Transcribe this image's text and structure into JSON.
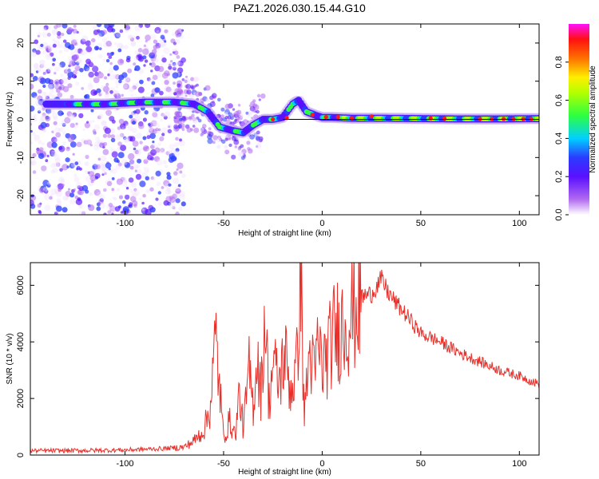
{
  "title": "PAZ1.2026.030.15.44.G10",
  "chart_data": [
    {
      "type": "heatmap",
      "name": "spectrogram",
      "xlabel": "Height of straight line (km)",
      "ylabel": "Frequency (Hz)",
      "xlim": [
        -148,
        110
      ],
      "ylim": [
        -25,
        25
      ],
      "xticks": [
        -100,
        -50,
        0,
        50,
        100
      ],
      "yticks": [
        -20,
        -10,
        0,
        10,
        20
      ],
      "colorbar": {
        "label": "Normalized spectral amplitude",
        "range": [
          0,
          1
        ],
        "ticks": [
          "0.0",
          "0.2",
          "0.4",
          "0.6",
          "0.8"
        ]
      },
      "ridge": {
        "heights_km": [
          -130,
          -110,
          -90,
          -75,
          -65,
          -58,
          -52,
          -45,
          -40,
          -35,
          -30,
          -25,
          -20,
          -15,
          -12,
          -8,
          -3,
          0,
          5,
          15,
          30,
          50,
          70,
          90,
          110
        ],
        "frequency_hz": [
          4,
          4,
          4.5,
          4.5,
          4,
          2,
          -2,
          -3,
          -3.5,
          -1.5,
          0,
          0,
          0.5,
          4,
          5,
          2,
          1,
          0.5,
          0.5,
          0.3,
          0.3,
          0.2,
          0.1,
          0.1,
          0.2
        ]
      }
    },
    {
      "type": "line",
      "name": "snr",
      "xlabel": "Height of straight line (km)",
      "ylabel": "SNR (10 * v/v)",
      "xlim": [
        -148,
        110
      ],
      "ylim": [
        0,
        6800
      ],
      "xticks": [
        -100,
        -50,
        0,
        50,
        100
      ],
      "yticks": [
        0,
        2000,
        4000,
        6000
      ],
      "color": "#e8302a",
      "x": [
        -148,
        -120,
        -100,
        -80,
        -70,
        -65,
        -60,
        -57,
        -54,
        -52,
        -50,
        -47,
        -44,
        -42,
        -40,
        -37,
        -35,
        -33,
        -31,
        -29,
        -27,
        -25,
        -22,
        -19,
        -16,
        -13,
        -11,
        -10,
        -9,
        -8,
        -6,
        -4,
        -2,
        0,
        3,
        6,
        10,
        15,
        20,
        25,
        30,
        33,
        37,
        42,
        50,
        60,
        70,
        80,
        90,
        100,
        110
      ],
      "y": [
        150,
        160,
        180,
        230,
        280,
        500,
        900,
        1600,
        4100,
        2400,
        600,
        1200,
        700,
        2200,
        900,
        3000,
        1700,
        3600,
        2100,
        5200,
        1800,
        3300,
        2500,
        3600,
        2300,
        3000,
        6800,
        4000,
        1200,
        2500,
        3700,
        2700,
        4000,
        3100,
        3600,
        4300,
        4600,
        5000,
        5600,
        5700,
        6200,
        5800,
        5400,
        5000,
        4300,
        4000,
        3600,
        3300,
        3000,
        2800,
        2500
      ]
    }
  ]
}
